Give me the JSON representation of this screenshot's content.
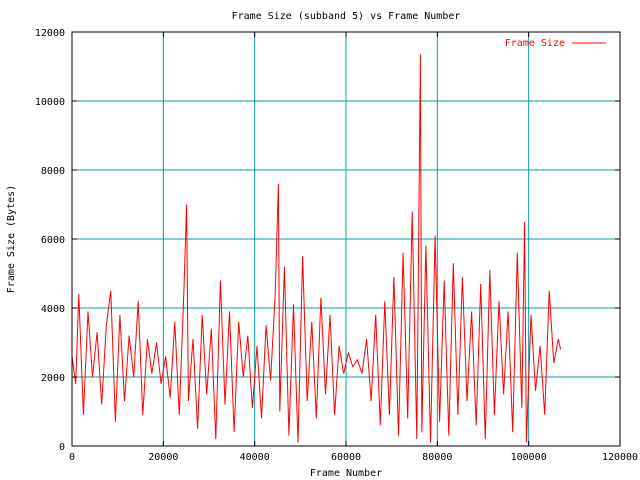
{
  "chart_data": {
    "type": "line",
    "title": "Frame Size (subband 5) vs Frame Number",
    "xlabel": "Frame Number",
    "ylabel": "Frame Size (Bytes)",
    "xlim": [
      0,
      120000
    ],
    "ylim": [
      0,
      12000
    ],
    "xticks": [
      0,
      20000,
      40000,
      60000,
      80000,
      100000,
      120000
    ],
    "yticks": [
      0,
      2000,
      4000,
      6000,
      8000,
      10000,
      12000
    ],
    "xtick_labels": [
      "0",
      "20000",
      "40000",
      "60000",
      "80000",
      "100000",
      "120000"
    ],
    "ytick_labels": [
      "0",
      "2000",
      "4000",
      "6000",
      "8000",
      "10000",
      "12000"
    ],
    "grid": true,
    "legend_position": "top-right",
    "colors": {
      "series": "#ff0000",
      "grid": "#00a0a0",
      "axes": "#000000"
    },
    "series": [
      {
        "name": "Frame Size",
        "x": [
          0,
          800,
          1500,
          2500,
          3500,
          4500,
          5500,
          6500,
          7500,
          8500,
          9500,
          10500,
          11500,
          12500,
          13500,
          14500,
          15500,
          16500,
          17500,
          18500,
          19500,
          20500,
          21500,
          22500,
          23500,
          24500,
          25100,
          25500,
          26500,
          27500,
          28500,
          29500,
          30500,
          31500,
          32500,
          33500,
          34500,
          35500,
          36500,
          37500,
          38500,
          39500,
          40500,
          41500,
          42500,
          43500,
          44500,
          45200,
          45500,
          46500,
          47500,
          48500,
          49500,
          50500,
          51500,
          52500,
          53500,
          54500,
          55500,
          56500,
          57500,
          58500,
          59500,
          60500,
          61500,
          62500,
          63500,
          64500,
          65500,
          66500,
          67500,
          68500,
          69500,
          70500,
          71500,
          72500,
          73500,
          74500,
          75500,
          76300,
          76600,
          77500,
          78500,
          79500,
          80500,
          81500,
          82500,
          83500,
          84500,
          85500,
          86500,
          87500,
          88500,
          89500,
          90500,
          91500,
          92500,
          93500,
          94500,
          95500,
          96500,
          97500,
          98500,
          99100,
          99500,
          100500,
          101500,
          102500,
          103500,
          104500,
          105500,
          106500,
          107000
        ],
        "y": [
          2600,
          1800,
          4400,
          900,
          3900,
          2000,
          3300,
          1200,
          3500,
          4500,
          700,
          3800,
          1300,
          3200,
          2000,
          4200,
          900,
          3100,
          2100,
          3000,
          1800,
          2600,
          1400,
          3600,
          900,
          4500,
          7000,
          1300,
          3100,
          500,
          3800,
          1500,
          3400,
          200,
          4800,
          1200,
          3900,
          400,
          3600,
          2000,
          3200,
          1100,
          2900,
          800,
          3500,
          1900,
          4400,
          7600,
          1000,
          5200,
          300,
          4100,
          100,
          5500,
          1300,
          3600,
          800,
          4300,
          1500,
          3800,
          900,
          2900,
          2100,
          2700,
          2300,
          2500,
          2100,
          3100,
          1300,
          3800,
          600,
          4200,
          900,
          4900,
          300,
          5600,
          800,
          6800,
          200,
          11350,
          400,
          5800,
          100,
          6100,
          700,
          4800,
          300,
          5300,
          900,
          4900,
          1300,
          3900,
          600,
          4700,
          200,
          5100,
          900,
          4200,
          1500,
          3900,
          400,
          5600,
          1100,
          6500,
          100,
          3800,
          1600,
          2900,
          900,
          4500,
          2400,
          3100,
          2800
        ]
      }
    ]
  }
}
